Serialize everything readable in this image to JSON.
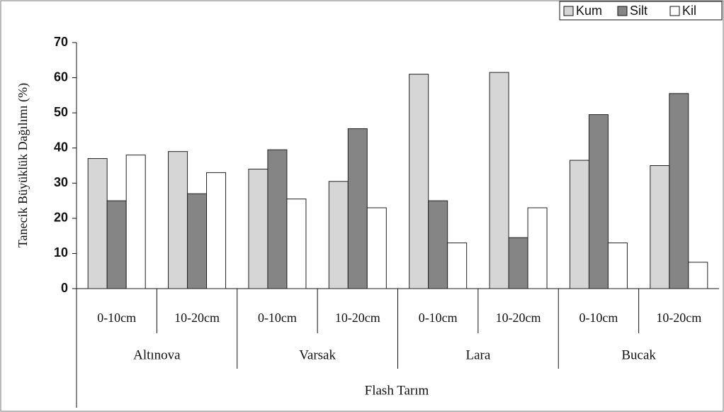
{
  "chart_data": {
    "type": "bar",
    "ylabel": "Tanecik Büyüklük Dağılımı (%)",
    "xlabel": "Flash Tarım",
    "groups": [
      "Altınova",
      "Varsak",
      "Lara",
      "Bucak"
    ],
    "categories": [
      "0-10cm",
      "10-20cm",
      "0-10cm",
      "10-20cm",
      "0-10cm",
      "10-20cm",
      "0-10cm",
      "10-20cm"
    ],
    "series": [
      {
        "name": "Kum",
        "color": "#d6d6d6",
        "values": [
          37,
          39,
          34,
          30.5,
          61,
          61.5,
          36.5,
          35
        ]
      },
      {
        "name": "Silt",
        "color": "#858585",
        "values": [
          25,
          27,
          39.5,
          45.5,
          25,
          14.5,
          49.5,
          55.5
        ]
      },
      {
        "name": "Kil",
        "color": "#ffffff",
        "values": [
          38,
          33,
          25.5,
          23,
          13,
          23,
          13,
          7.5
        ]
      }
    ],
    "ylim": [
      0,
      70
    ],
    "yticks": [
      0,
      10,
      20,
      30,
      40,
      50,
      60,
      70
    ],
    "grid": false,
    "legend": "top-right"
  }
}
